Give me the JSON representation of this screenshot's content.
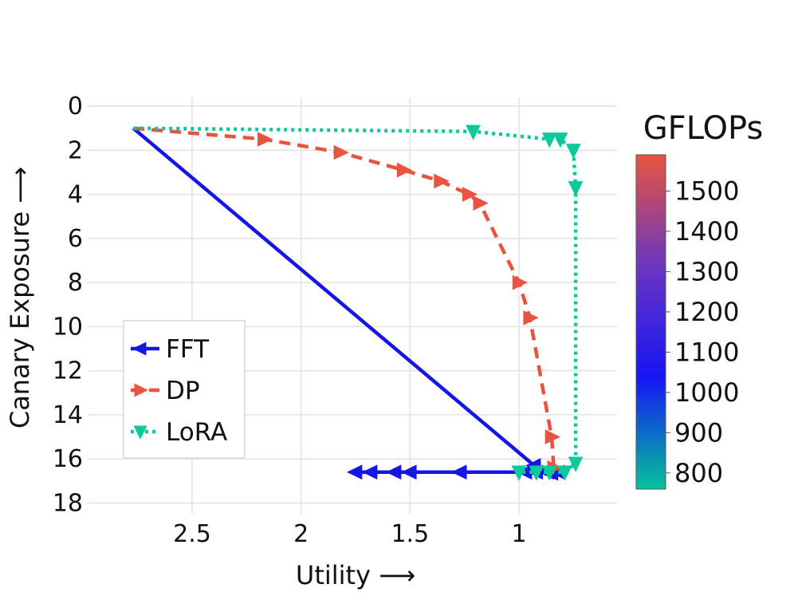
{
  "chart_data": {
    "type": "line",
    "title": "",
    "xlabel": "Utility ⟶",
    "ylabel": "Canary Exposure ⟶",
    "x_reversed": true,
    "y_reversed": true,
    "xlim": [
      2.95,
      0.55
    ],
    "ylim": [
      18.2,
      -0.4
    ],
    "xticks": [
      2.5,
      2,
      1.5,
      1
    ],
    "xtick_labels": [
      "2.5",
      "2",
      "1.5",
      "1"
    ],
    "yticks": [
      0,
      2,
      4,
      6,
      8,
      10,
      12,
      14,
      16,
      18
    ],
    "ytick_labels": [
      "0",
      "2",
      "4",
      "6",
      "8",
      "10",
      "12",
      "14",
      "16",
      "18"
    ],
    "grid": true,
    "legend_position": "lower-left",
    "series": [
      {
        "name": "FFT",
        "color": "#1515e6",
        "dash": "solid",
        "marker": "triangle-left",
        "x": [
          2.77,
          0.93,
          0.87,
          0.85,
          0.82,
          0.92,
          0.97,
          1.27,
          1.5,
          1.57,
          1.68,
          1.75
        ],
        "y": [
          1.0,
          16.3,
          16.6,
          16.65,
          16.6,
          16.6,
          16.6,
          16.6,
          16.6,
          16.6,
          16.6,
          16.6
        ]
      },
      {
        "name": "DP",
        "color": "#e85440",
        "dash": "dashed",
        "marker": "triangle-right",
        "x": [
          2.77,
          2.17,
          1.82,
          1.53,
          1.36,
          1.23,
          1.18,
          1.0,
          0.95,
          0.85,
          0.84
        ],
        "y": [
          1.0,
          1.5,
          2.1,
          2.9,
          3.4,
          4.0,
          4.4,
          8.0,
          9.6,
          15.0,
          16.4
        ]
      },
      {
        "name": "LoRA",
        "color": "#0cc99a",
        "dash": "dotted",
        "marker": "triangle-down",
        "x": [
          2.77,
          1.21,
          0.86,
          0.81,
          0.75,
          0.74,
          0.74,
          0.79,
          0.86,
          0.92,
          1.0
        ],
        "y": [
          1.0,
          1.15,
          1.5,
          1.5,
          2.0,
          3.7,
          16.2,
          16.6,
          16.6,
          16.6,
          16.6
        ]
      }
    ],
    "colorbar": {
      "title": "GFLOPs",
      "ticks": [
        800,
        900,
        1000,
        1100,
        1200,
        1300,
        1400,
        1500
      ],
      "tick_labels": [
        "800",
        "900",
        "1000",
        "1100",
        "1200",
        "1300",
        "1400",
        "1500"
      ],
      "range": [
        760,
        1590
      ],
      "colors": [
        "#05c49a",
        "#1515f5",
        "#6a36c0",
        "#e85440"
      ]
    }
  }
}
